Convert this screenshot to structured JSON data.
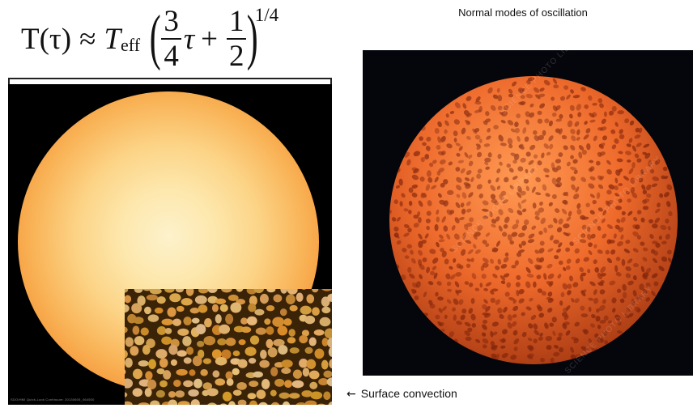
{
  "formula": {
    "lhs": "T(τ)",
    "approx": "≈",
    "t": "T",
    "t_sub": "eff",
    "frac1_num": "3",
    "frac1_den": "4",
    "tau": "τ",
    "plus": "+",
    "frac2_num": "1",
    "frac2_den": "2",
    "exponent": "1/4"
  },
  "right_panel": {
    "title": "Normal modes of oscillation",
    "watermark": "SCIENCE PHOTO LIBRARY"
  },
  "left_panel": {
    "caption": "SDO/HMI Quick-Look Continuum: 20130605_064500"
  },
  "annotation": {
    "arrow": "←",
    "label": "Surface convection"
  },
  "colors": {
    "sun_center": "#fdf2cc",
    "sun_limb": "#e36718",
    "star_base": "#ef6b2c",
    "star_spot": "#8e2a0c",
    "granule": "#d6a35a",
    "lane": "#3b2308"
  }
}
